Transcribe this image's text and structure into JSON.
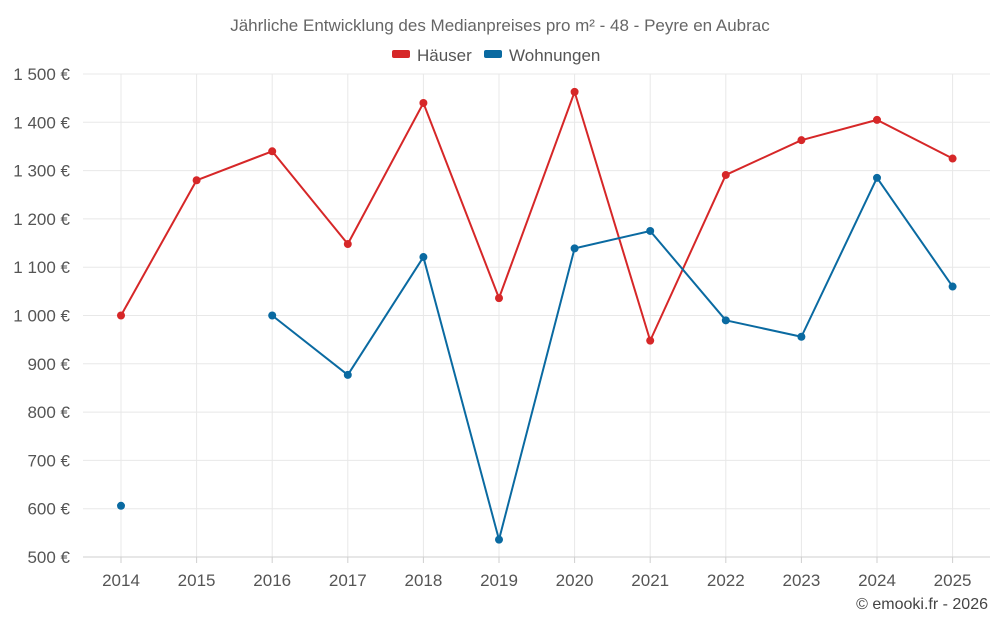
{
  "colors": {
    "houses": "#d62728",
    "apartments": "#0a6aa1",
    "grid": "#e8e8e8",
    "axis": "#cfcfcf"
  },
  "credit": "© emooki.fr - 2026",
  "chart_data": {
    "type": "line",
    "title": "Jährliche Entwicklung des Medianpreises pro m² - 48 - Peyre en Aubrac",
    "x": [
      "2014",
      "2015",
      "2016",
      "2017",
      "2018",
      "2019",
      "2020",
      "2021",
      "2022",
      "2023",
      "2024",
      "2025"
    ],
    "ylim": [
      500,
      1500
    ],
    "yticks": [
      500,
      600,
      700,
      800,
      900,
      1000,
      1100,
      1200,
      1300,
      1400,
      1500
    ],
    "ytick_labels": [
      "500 €",
      "600 €",
      "700 €",
      "800 €",
      "900 €",
      "1 000 €",
      "1 100 €",
      "1 200 €",
      "1 300 €",
      "1 400 €",
      "1 500 €"
    ],
    "legend_position": "top-center",
    "grid": true,
    "series": [
      {
        "name": "Häuser",
        "color_key": "houses",
        "values": [
          1000,
          1280,
          1340,
          1148,
          1440,
          1036,
          1463,
          948,
          1291,
          1363,
          1405,
          1325
        ]
      },
      {
        "name": "Wohnungen",
        "color_key": "apartments",
        "values": [
          606,
          null,
          1000,
          877,
          1121,
          536,
          1139,
          1175,
          990,
          956,
          1285,
          1060
        ]
      }
    ]
  }
}
